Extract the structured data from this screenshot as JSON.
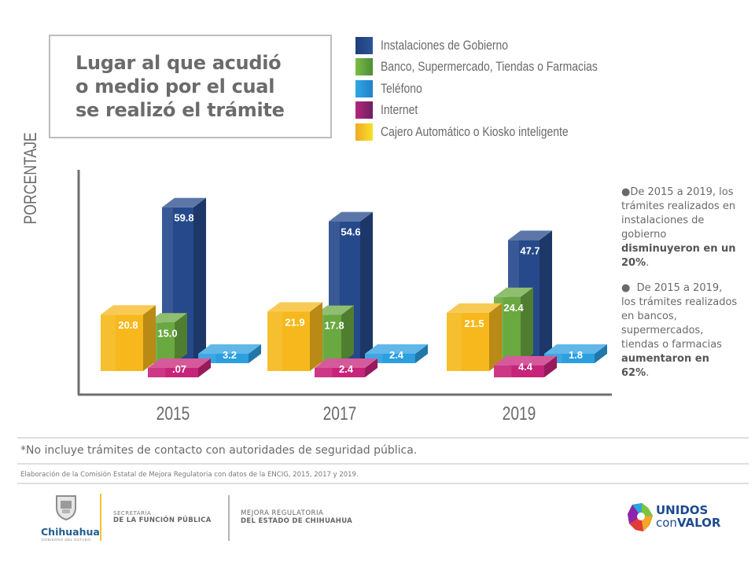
{
  "title": "Lugar al que acudió\no medio por el cual\nse realizó el trámite",
  "legend": [
    {
      "label": "Instalaciones de Gobierno",
      "color": "#2a4e8f"
    },
    {
      "label": "Banco, Supermercado, Tiendas o Farmacias",
      "color": "#6aa840"
    },
    {
      "label": "Teléfono",
      "color": "#2a9ad8"
    },
    {
      "label": "Internet",
      "color": "#a5206f"
    },
    {
      "label": "Cajero Automático o Kiosko inteligente",
      "color": "#f4c21e"
    }
  ],
  "chart_data": {
    "type": "bar",
    "title": "Lugar al que acudió o medio por el cual se realizó el trámite",
    "xlabel": "",
    "ylabel": "PORCENTAJE",
    "categories": [
      "2015",
      "2017",
      "2019"
    ],
    "series": [
      {
        "name": "Cajero Automático o Kiosko inteligente",
        "values": [
          20.8,
          21.9,
          21.5
        ],
        "labels": [
          "20.8",
          "21.9",
          "21.5"
        ],
        "color": "#f6b81c"
      },
      {
        "name": "Banco, Supermercado, Tiendas o Farmacias",
        "values": [
          15.0,
          17.8,
          24.4
        ],
        "labels": [
          "15.0",
          "17.8",
          "24.4"
        ],
        "color": "#6aa840"
      },
      {
        "name": "Instalaciones de Gobierno",
        "values": [
          59.8,
          54.6,
          47.7
        ],
        "labels": [
          "59.8",
          "54.6",
          "47.7"
        ],
        "color": "#25498a"
      },
      {
        "name": "Internet",
        "values": [
          0.07,
          2.4,
          4.4
        ],
        "labels": [
          ".07",
          "2.4",
          "4.4"
        ],
        "color": "#c8237a"
      },
      {
        "name": "Teléfono",
        "values": [
          3.2,
          2.4,
          1.8
        ],
        "labels": [
          "3.2",
          "2.4",
          "1.8"
        ],
        "color": "#2b9fe0"
      }
    ],
    "grid": false,
    "legend_position": "top-right"
  },
  "notes": [
    {
      "text": "De 2015 a 2019, los trámites realizados en instalaciones de gobierno ",
      "bold": "disminuyeron en un 20%",
      "end": "."
    },
    {
      "text": "De 2015 a 2019, los trámites realizados en bancos, supermercados, tiendas o farmacias ",
      "bold": "aumentaron en 62%",
      "end": "."
    }
  ],
  "footnote": "*No incluye trámites de contacto con autoridades de seguridad pública.",
  "source": "Elaboración de la Comisión Estatal de Mejora Regulatoria con datos de la ENCIG, 2015, 2017 y 2019.",
  "footer": {
    "chihuahua": "Chihuahua",
    "chihuahua_sub": "GOBIERNO DEL ESTADO",
    "secretaria_line1": "SECRETARÍA",
    "secretaria_line2": "DE LA FUNCIÓN PÚBLICA",
    "mejora_line1": "MEJORA REGULATORIA",
    "mejora_line2": "DEL ESTADO DE CHIHUAHUA",
    "unidos_line1": "UNIDOS",
    "unidos_line2a": "con",
    "unidos_line2b": "VALOR"
  }
}
